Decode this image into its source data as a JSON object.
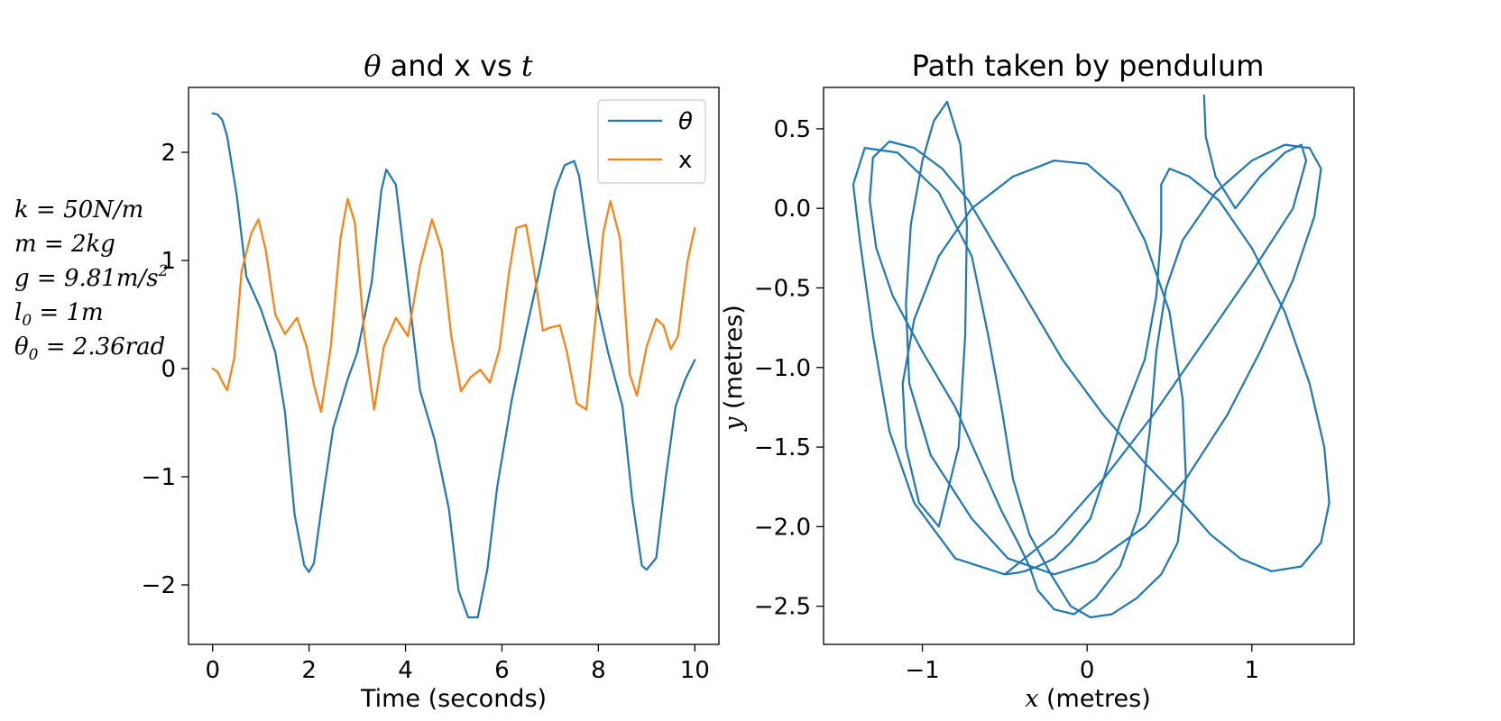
{
  "colors": {
    "theta": "#1f77b4",
    "x": "#ff7f0e",
    "axes": "#000000"
  },
  "params": {
    "k": "k = 50N/m",
    "m": "m = 2kg",
    "g_main": "g = 9.81m/s",
    "g_sup": "2",
    "l0_main": "l",
    "l0_sub": "0",
    "l0_rest": " = 1m",
    "th0_main": "θ",
    "th0_sub": "0",
    "th0_rest": " = 2.36rad"
  },
  "left": {
    "title_math1": "θ",
    "title_text": " and x vs ",
    "title_math2": "t",
    "xlabel": "Time (seconds)",
    "legend": {
      "theta": "θ",
      "x": "x"
    }
  },
  "right": {
    "title": "Path taken by pendulum",
    "xlabel_math": "x",
    "xlabel_text": " (metres)",
    "ylabel_math": "y",
    "ylabel_text": " (metres)"
  },
  "chart_data": [
    {
      "type": "line",
      "title": "θ and x vs t",
      "xlabel": "Time (seconds)",
      "ylabel": "",
      "xlim": [
        -0.5,
        10.5
      ],
      "ylim": [
        -2.55,
        2.6
      ],
      "xticks": [
        0,
        2,
        4,
        6,
        8,
        10
      ],
      "xtick_labels": [
        "0",
        "2",
        "4",
        "6",
        "8",
        "10"
      ],
      "yticks": [
        -2,
        -1,
        0,
        1,
        2
      ],
      "ytick_labels": [
        "−2",
        "−1",
        "0",
        "1",
        "2"
      ],
      "legend_position": "upper right",
      "grid": false,
      "series": [
        {
          "name": "θ",
          "x": [
            0,
            0.1,
            0.2,
            0.3,
            0.5,
            0.7,
            1.0,
            1.3,
            1.5,
            1.7,
            1.9,
            2.0,
            2.1,
            2.3,
            2.5,
            2.8,
            3.0,
            3.3,
            3.5,
            3.6,
            3.8,
            4.0,
            4.3,
            4.6,
            4.9,
            5.1,
            5.3,
            5.5,
            5.7,
            5.9,
            6.2,
            6.5,
            6.8,
            7.1,
            7.3,
            7.5,
            7.6,
            7.8,
            8.0,
            8.2,
            8.5,
            8.7,
            8.9,
            9.0,
            9.2,
            9.4,
            9.6,
            9.8,
            10.0
          ],
          "values": [
            2.36,
            2.35,
            2.3,
            2.15,
            1.6,
            0.85,
            0.55,
            0.15,
            -0.4,
            -1.35,
            -1.82,
            -1.88,
            -1.8,
            -1.15,
            -0.55,
            -0.1,
            0.15,
            0.8,
            1.65,
            1.84,
            1.7,
            0.95,
            -0.2,
            -0.65,
            -1.3,
            -2.05,
            -2.3,
            -2.3,
            -1.85,
            -1.1,
            -0.3,
            0.35,
            0.95,
            1.65,
            1.88,
            1.92,
            1.78,
            1.15,
            0.55,
            0.15,
            -0.35,
            -1.2,
            -1.82,
            -1.86,
            -1.75,
            -1.0,
            -0.35,
            -0.1,
            0.08
          ]
        },
        {
          "name": "x",
          "x": [
            0,
            0.1,
            0.2,
            0.3,
            0.45,
            0.6,
            0.8,
            0.95,
            1.1,
            1.3,
            1.5,
            1.75,
            1.95,
            2.1,
            2.25,
            2.45,
            2.65,
            2.8,
            2.95,
            3.15,
            3.35,
            3.55,
            3.8,
            4.05,
            4.3,
            4.55,
            4.75,
            4.95,
            5.15,
            5.35,
            5.55,
            5.75,
            5.95,
            6.15,
            6.3,
            6.5,
            6.65,
            6.85,
            7.0,
            7.2,
            7.35,
            7.55,
            7.75,
            7.95,
            8.1,
            8.25,
            8.45,
            8.65,
            8.8,
            9.0,
            9.2,
            9.35,
            9.5,
            9.65,
            9.85,
            10.0
          ],
          "values": [
            0.0,
            -0.03,
            -0.12,
            -0.2,
            0.1,
            0.9,
            1.25,
            1.38,
            1.1,
            0.5,
            0.32,
            0.47,
            0.2,
            -0.15,
            -0.4,
            0.2,
            1.2,
            1.57,
            1.35,
            0.3,
            -0.38,
            0.2,
            0.47,
            0.3,
            0.95,
            1.38,
            1.1,
            0.3,
            -0.21,
            -0.08,
            -0.01,
            -0.13,
            0.18,
            0.9,
            1.3,
            1.33,
            0.95,
            0.35,
            0.38,
            0.4,
            0.15,
            -0.32,
            -0.38,
            0.5,
            1.25,
            1.55,
            1.2,
            -0.05,
            -0.25,
            0.2,
            0.46,
            0.4,
            0.18,
            0.3,
            1.0,
            1.3
          ]
        }
      ]
    },
    {
      "type": "line",
      "title": "Path taken by pendulum",
      "xlabel": "x (metres)",
      "ylabel": "y (metres)",
      "xlim": [
        -1.6,
        1.62
      ],
      "ylim": [
        -2.74,
        0.76
      ],
      "xticks": [
        -1,
        0,
        1
      ],
      "xtick_labels": [
        "−1",
        "0",
        "1"
      ],
      "yticks": [
        0.5,
        0.0,
        -0.5,
        -1.0,
        -1.5,
        -2.0,
        -2.5
      ],
      "ytick_labels": [
        "0.5",
        "0.0",
        "−0.5",
        "−1.0",
        "−1.5",
        "−2.0",
        "−2.5"
      ],
      "grid": false,
      "series": [
        {
          "name": "",
          "x": [
            0.71,
            0.72,
            0.78,
            0.9,
            1.05,
            1.2,
            1.3,
            1.33,
            1.25,
            1.0,
            0.7,
            0.4,
            0.1,
            -0.2,
            -0.5,
            -0.8,
            -1.05,
            -1.2,
            -1.3,
            -1.38,
            -1.42,
            -1.35,
            -1.15,
            -0.9,
            -0.7,
            -0.6,
            -0.52,
            -0.45,
            -0.35,
            -0.22,
            -0.1,
            0.02,
            0.15,
            0.3,
            0.45,
            0.55,
            0.6,
            0.58,
            0.5,
            0.35,
            0.2,
            0.0,
            -0.2,
            -0.45,
            -0.7,
            -0.9,
            -1.05,
            -1.12,
            -1.1,
            -1.02,
            -0.9,
            -0.78,
            -0.74,
            -0.73,
            -0.77,
            -0.85,
            -0.93,
            -1.0,
            -1.07,
            -1.1,
            -1.08,
            -0.95,
            -0.7,
            -0.48,
            -0.2,
            0.05,
            0.35,
            0.6,
            0.85,
            1.05,
            1.25,
            1.38,
            1.42,
            1.35,
            1.2,
            1.0,
            0.78,
            0.58,
            0.48,
            0.42,
            0.38,
            0.32,
            0.2,
            0.05,
            -0.08,
            -0.2,
            -0.3,
            -0.35,
            -0.42,
            -0.52,
            -0.65,
            -0.8,
            -1.0,
            -1.18,
            -1.28,
            -1.32,
            -1.3,
            -1.2,
            -1.05,
            -0.88,
            -0.72,
            -0.55,
            -0.35,
            -0.15,
            0.1,
            0.35,
            0.58,
            0.75,
            0.93,
            1.12,
            1.3,
            1.42,
            1.47,
            1.44,
            1.35,
            1.2,
            1.0,
            0.8,
            0.62,
            0.5,
            0.45,
            0.45,
            0.42,
            0.35,
            0.2,
            0.1,
            0.02,
            -0.1,
            -0.2,
            -0.3,
            -0.38,
            -0.42,
            -0.5
          ],
          "values": [
            0.71,
            0.45,
            0.2,
            0.0,
            0.2,
            0.35,
            0.4,
            0.3,
            0.0,
            -0.4,
            -0.85,
            -1.3,
            -1.7,
            -2.05,
            -2.3,
            -2.2,
            -1.85,
            -1.4,
            -0.8,
            -0.2,
            0.15,
            0.38,
            0.35,
            0.1,
            -0.3,
            -0.8,
            -1.25,
            -1.7,
            -2.05,
            -2.3,
            -2.5,
            -2.57,
            -2.55,
            -2.45,
            -2.3,
            -2.1,
            -1.7,
            -1.2,
            -0.65,
            -0.2,
            0.1,
            0.28,
            0.3,
            0.2,
            0.0,
            -0.3,
            -0.7,
            -1.1,
            -1.5,
            -1.85,
            -2.0,
            -1.5,
            -0.8,
            -0.1,
            0.4,
            0.67,
            0.55,
            0.3,
            -0.1,
            -0.6,
            -1.1,
            -1.55,
            -1.95,
            -2.2,
            -2.3,
            -2.22,
            -2.0,
            -1.7,
            -1.3,
            -0.9,
            -0.45,
            -0.05,
            0.25,
            0.38,
            0.4,
            0.3,
            0.1,
            -0.2,
            -0.5,
            -0.9,
            -1.4,
            -1.9,
            -2.25,
            -2.45,
            -2.55,
            -2.52,
            -2.4,
            -2.25,
            -2.1,
            -1.9,
            -1.6,
            -1.25,
            -0.9,
            -0.55,
            -0.25,
            0.05,
            0.32,
            0.42,
            0.38,
            0.25,
            0.05,
            -0.25,
            -0.6,
            -0.95,
            -1.3,
            -1.6,
            -1.85,
            -2.05,
            -2.2,
            -2.28,
            -2.25,
            -2.1,
            -1.85,
            -1.5,
            -1.1,
            -0.65,
            -0.25,
            0.05,
            0.2,
            0.25,
            0.15,
            -0.15,
            -0.55,
            -0.95,
            -1.35,
            -1.7,
            -1.95,
            -2.1,
            -2.2,
            -2.25,
            -2.28,
            -2.29,
            -2.3
          ]
        }
      ]
    }
  ]
}
